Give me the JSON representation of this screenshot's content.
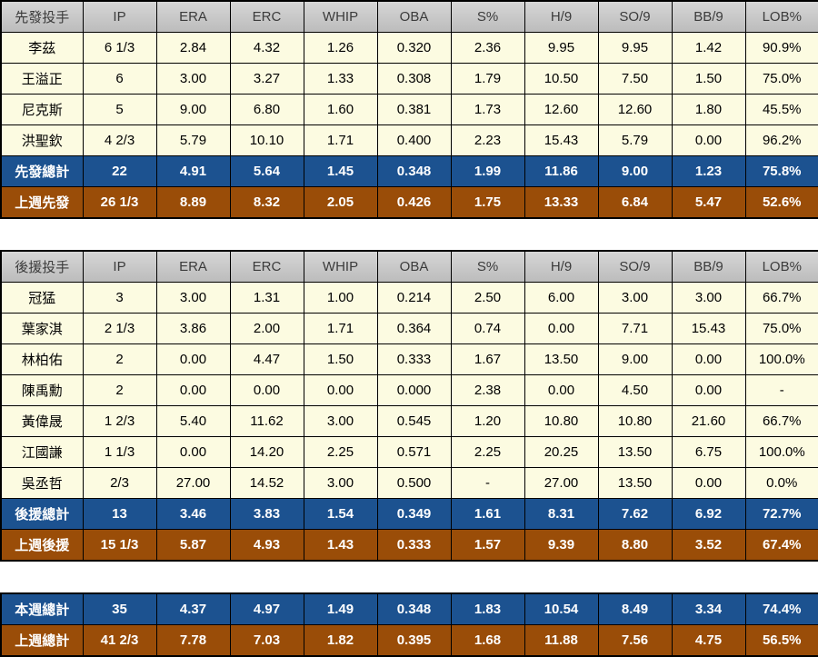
{
  "colors": {
    "page_bg": "#FFFFFF",
    "header_bg_top": "#D6D6D6",
    "header_bg_bottom": "#BCBCBC",
    "header_text": "#3B3B3B",
    "row_bg": "#FCFBE1",
    "row_text": "#000000",
    "total_bg": "#1C5290",
    "lastweek_bg": "#9A4D08",
    "total_text": "#FFFFFF",
    "border": "#000000"
  },
  "chart_data": [
    {
      "type": "table",
      "title": "先發投手",
      "columns": [
        "先發投手",
        "IP",
        "ERA",
        "ERC",
        "WHIP",
        "OBA",
        "S%",
        "H/9",
        "SO/9",
        "BB/9",
        "LOB%"
      ],
      "rows": [
        {
          "style": "data",
          "cells": [
            "李茲",
            "6 1/3",
            "2.84",
            "4.32",
            "1.26",
            "0.320",
            "2.36",
            "9.95",
            "9.95",
            "1.42",
            "90.9%"
          ]
        },
        {
          "style": "data",
          "cells": [
            "王溢正",
            "6",
            "3.00",
            "3.27",
            "1.33",
            "0.308",
            "1.79",
            "10.50",
            "7.50",
            "1.50",
            "75.0%"
          ]
        },
        {
          "style": "data",
          "cells": [
            "尼克斯",
            "5",
            "9.00",
            "6.80",
            "1.60",
            "0.381",
            "1.73",
            "12.60",
            "12.60",
            "1.80",
            "45.5%"
          ]
        },
        {
          "style": "data",
          "cells": [
            "洪聖欽",
            "4 2/3",
            "5.79",
            "10.10",
            "1.71",
            "0.400",
            "2.23",
            "15.43",
            "5.79",
            "0.00",
            "96.2%"
          ]
        },
        {
          "style": "total",
          "cells": [
            "先發總計",
            "22",
            "4.91",
            "5.64",
            "1.45",
            "0.348",
            "1.99",
            "11.86",
            "9.00",
            "1.23",
            "75.8%"
          ]
        },
        {
          "style": "lastweek",
          "cells": [
            "上週先發",
            "26 1/3",
            "8.89",
            "8.32",
            "2.05",
            "0.426",
            "1.75",
            "13.33",
            "6.84",
            "5.47",
            "52.6%"
          ]
        }
      ]
    },
    {
      "type": "table",
      "title": "後援投手",
      "columns": [
        "後援投手",
        "IP",
        "ERA",
        "ERC",
        "WHIP",
        "OBA",
        "S%",
        "H/9",
        "SO/9",
        "BB/9",
        "LOB%"
      ],
      "rows": [
        {
          "style": "data",
          "cells": [
            "冠猛",
            "3",
            "3.00",
            "1.31",
            "1.00",
            "0.214",
            "2.50",
            "6.00",
            "3.00",
            "3.00",
            "66.7%"
          ]
        },
        {
          "style": "data",
          "cells": [
            "葉家淇",
            "2 1/3",
            "3.86",
            "2.00",
            "1.71",
            "0.364",
            "0.74",
            "0.00",
            "7.71",
            "15.43",
            "75.0%"
          ]
        },
        {
          "style": "data",
          "cells": [
            "林柏佑",
            "2",
            "0.00",
            "4.47",
            "1.50",
            "0.333",
            "1.67",
            "13.50",
            "9.00",
            "0.00",
            "100.0%"
          ]
        },
        {
          "style": "data",
          "cells": [
            "陳禹勳",
            "2",
            "0.00",
            "0.00",
            "0.00",
            "0.000",
            "2.38",
            "0.00",
            "4.50",
            "0.00",
            "-"
          ]
        },
        {
          "style": "data",
          "cells": [
            "黃偉晟",
            "1 2/3",
            "5.40",
            "11.62",
            "3.00",
            "0.545",
            "1.20",
            "10.80",
            "10.80",
            "21.60",
            "66.7%"
          ]
        },
        {
          "style": "data",
          "cells": [
            "江國謙",
            "1 1/3",
            "0.00",
            "14.20",
            "2.25",
            "0.571",
            "2.25",
            "20.25",
            "13.50",
            "6.75",
            "100.0%"
          ]
        },
        {
          "style": "data",
          "cells": [
            "吳丞哲",
            "2/3",
            "27.00",
            "14.52",
            "3.00",
            "0.500",
            "-",
            "27.00",
            "13.50",
            "0.00",
            "0.0%"
          ]
        },
        {
          "style": "total",
          "cells": [
            "後援總計",
            "13",
            "3.46",
            "3.83",
            "1.54",
            "0.349",
            "1.61",
            "8.31",
            "7.62",
            "6.92",
            "72.7%"
          ]
        },
        {
          "style": "lastweek",
          "cells": [
            "上週後援",
            "15 1/3",
            "5.87",
            "4.93",
            "1.43",
            "0.333",
            "1.57",
            "9.39",
            "8.80",
            "3.52",
            "67.4%"
          ]
        }
      ]
    },
    {
      "type": "table",
      "columns": [],
      "rows": [
        {
          "style": "total",
          "cells": [
            "本週總計",
            "35",
            "4.37",
            "4.97",
            "1.49",
            "0.348",
            "1.83",
            "10.54",
            "8.49",
            "3.34",
            "74.4%"
          ]
        },
        {
          "style": "lastweek",
          "cells": [
            "上週總計",
            "41 2/3",
            "7.78",
            "7.03",
            "1.82",
            "0.395",
            "1.68",
            "11.88",
            "7.56",
            "4.75",
            "56.5%"
          ]
        }
      ]
    }
  ]
}
